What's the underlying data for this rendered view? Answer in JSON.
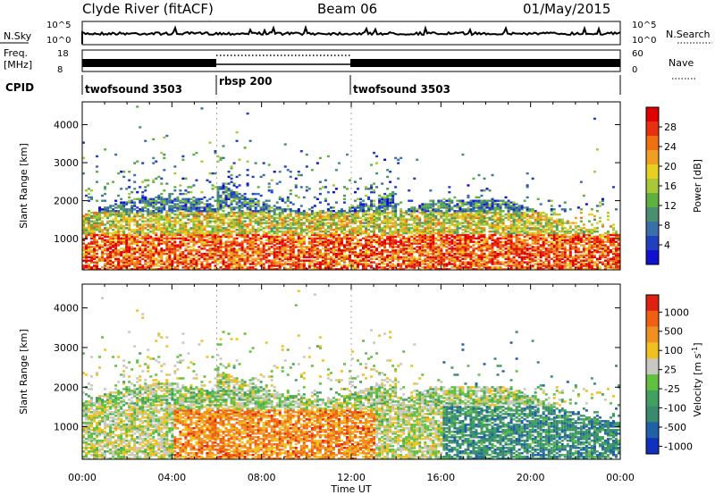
{
  "header": {
    "station": "Clyde River (fitACF)",
    "beam": "Beam 06",
    "date": "01/May/2015"
  },
  "top_panel": {
    "left_label": "N.Sky",
    "left_ticks": [
      "10^5",
      "10^0"
    ],
    "right_ticks": [
      "10^5",
      "10^0"
    ],
    "right_label": "N.Search"
  },
  "freq_panel": {
    "left_label_1": "Freq.",
    "left_label_2": "[MHz]",
    "left_ticks": [
      "18",
      "8"
    ],
    "right_ticks": [
      "60",
      "0"
    ],
    "right_label": "Nave"
  },
  "cpid": {
    "label": "CPID",
    "segments": [
      {
        "start": 0,
        "end": 6,
        "label": "twofsound 3503"
      },
      {
        "start": 6,
        "end": 12,
        "label": "rbsp 200"
      },
      {
        "start": 12,
        "end": 24,
        "label": "twofsound 3503"
      }
    ]
  },
  "chart_data": [
    {
      "type": "heatmap",
      "name": "power",
      "ylabel": "Slant Range [km]",
      "ylim": [
        180,
        4600
      ],
      "yticks": [
        "1000",
        "2000",
        "3000",
        "4000"
      ],
      "xlim": [
        0,
        24
      ],
      "colorbar": {
        "label": "Power [dB]",
        "ticks": [
          "4",
          "8",
          "12",
          "16",
          "20",
          "24",
          "28"
        ],
        "colors": [
          "#1010d0",
          "#2040c0",
          "#3a70a8",
          "#4a9070",
          "#60b040",
          "#a8c838",
          "#e8d020",
          "#f0a020",
          "#f07010",
          "#e83010",
          "#e00000"
        ]
      }
    },
    {
      "type": "heatmap",
      "name": "velocity",
      "ylabel": "Slant Range [km]",
      "ylim": [
        180,
        4600
      ],
      "yticks": [
        "1000",
        "2000",
        "3000",
        "4000"
      ],
      "xlim": [
        0,
        24
      ],
      "xlabel": "Time UT",
      "xticks": [
        "00:00",
        "04:00",
        "08:00",
        "12:00",
        "16:00",
        "20:00",
        "00:00"
      ],
      "colorbar": {
        "label": "Velocity [m s",
        "label_sup": "-1",
        "label_end": "]",
        "ticks": [
          "1000",
          "500",
          "100",
          "25",
          "-25",
          "-100",
          "-500",
          "-1000"
        ],
        "colors": [
          "#1030c0",
          "#2060a8",
          "#3a8a70",
          "#40a060",
          "#60c040",
          "#c8c8c0",
          "#f0c020",
          "#f09020",
          "#f06010",
          "#e02010"
        ]
      }
    }
  ]
}
